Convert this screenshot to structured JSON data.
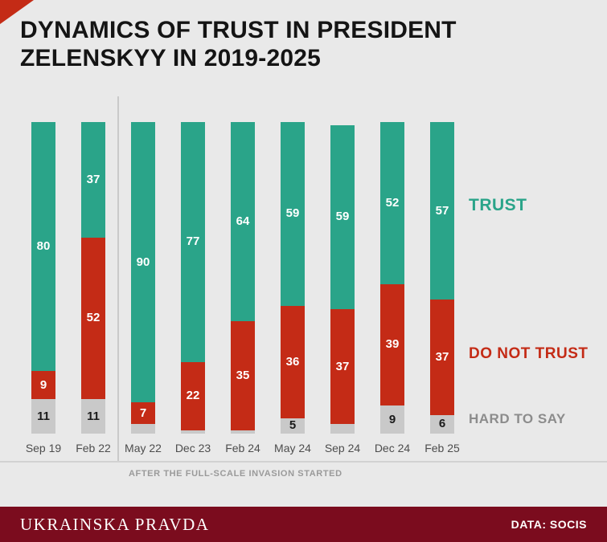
{
  "title": {
    "line1": "DYNAMICS OF TRUST IN PRESIDENT",
    "line2": "ZELENSKYY IN 2019-2025"
  },
  "chart_data": {
    "type": "bar",
    "stacked": true,
    "title": "Dynamics of trust in President Zelenskyy in 2019-2025",
    "categories": [
      "Sep 19",
      "Feb 22",
      "May 22",
      "Dec 23",
      "Feb 24",
      "May 24",
      "Sep 24",
      "Dec 24",
      "Feb 25"
    ],
    "series": [
      {
        "key": "trust",
        "name": "TRUST",
        "color": "#2aa489",
        "label_color": "#ffffff",
        "legend_color": "#2aa489",
        "values": [
          80,
          37,
          90,
          77,
          64,
          59,
          59,
          52,
          57
        ]
      },
      {
        "key": "distrust",
        "name": "DO NOT TRUST",
        "color": "#c42b16",
        "label_color": "#ffffff",
        "legend_color": "#c42b16",
        "values": [
          9,
          52,
          7,
          22,
          35,
          36,
          37,
          39,
          37
        ]
      },
      {
        "key": "hard",
        "name": "HARD TO SAY",
        "color": "#c9c9c9",
        "label_color": "#1a1a1a",
        "legend_color": "#8c8c8c",
        "values": [
          11,
          11,
          3,
          1,
          1,
          5,
          3,
          9,
          6
        ]
      }
    ],
    "ylim": [
      0,
      100
    ],
    "units": "percent",
    "legend_position": "right",
    "grid": false,
    "divider_after_category": "Feb 22",
    "annotation": "AFTER THE FULL-SCALE INVASION STARTED"
  },
  "footer": {
    "publisher": "UKRAINSKA PRAVDA",
    "source": "DATA: SOCIS"
  },
  "colors": {
    "background": "#e9e9e9",
    "accent_red": "#c42b16",
    "trust_green": "#2aa489",
    "distrust_red": "#c42b16",
    "hard_gray": "#c9c9c9",
    "footer_maroon": "#7b0c1e"
  }
}
